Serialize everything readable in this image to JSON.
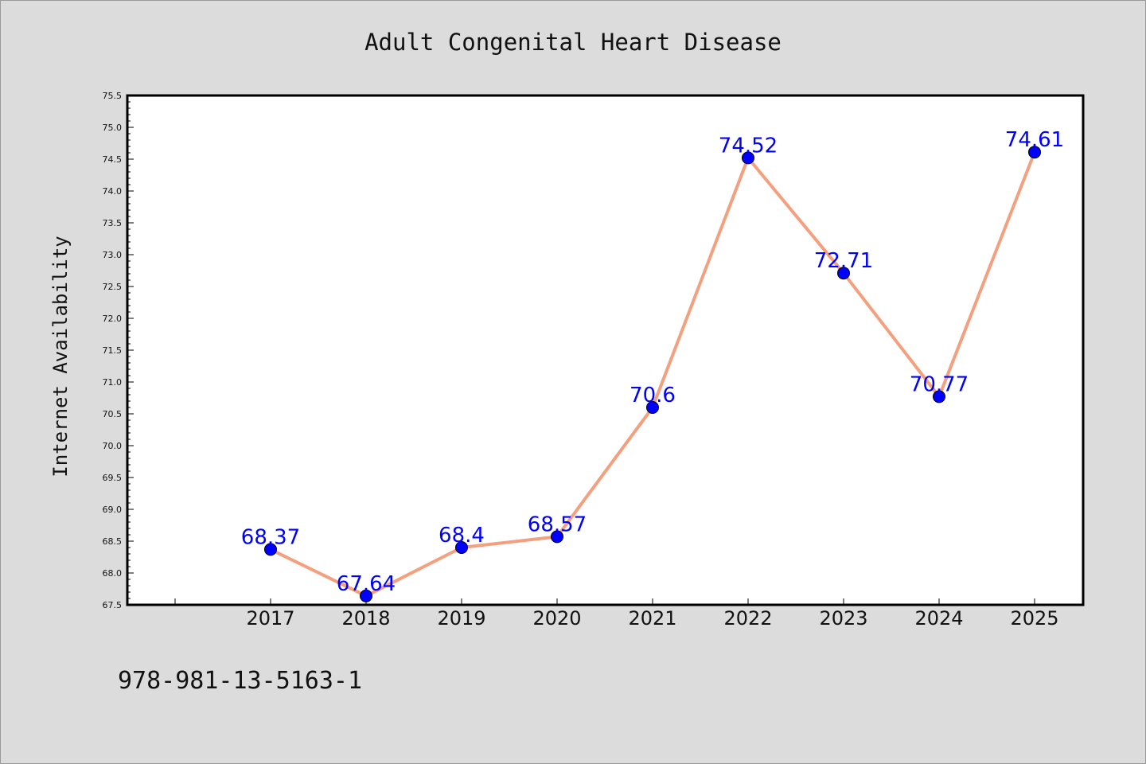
{
  "chart_data": {
    "type": "line",
    "title": "Adult Congenital Heart Disease",
    "xlabel": "",
    "ylabel": "Internet Availability",
    "categories": [
      "2017",
      "2018",
      "2019",
      "2020",
      "2021",
      "2022",
      "2023",
      "2024",
      "2025"
    ],
    "values": [
      68.37,
      67.64,
      68.4,
      68.57,
      70.6,
      74.52,
      72.71,
      70.77,
      74.61
    ],
    "data_labels": [
      "68.37",
      "67.64",
      "68.4",
      "68.57",
      "70.6",
      "74.52",
      "72.71",
      "70.77",
      "74.61"
    ],
    "ylim": [
      67.5,
      75.5
    ],
    "yticks": [
      "67.5",
      "68.0",
      "68.5",
      "69.0",
      "69.5",
      "70.0",
      "70.5",
      "71.0",
      "71.5",
      "72.0",
      "72.5",
      "73.0",
      "73.5",
      "74.0",
      "74.5",
      "75.0",
      "75.5"
    ],
    "grid": false,
    "legend": "none",
    "colors": {
      "line": "#f4a07f",
      "marker": "#0000ff",
      "label": "#0000ff",
      "background": "#dcdcdc",
      "plot_area": "#ffffff"
    }
  },
  "footer_text": "978-981-13-5163-1"
}
